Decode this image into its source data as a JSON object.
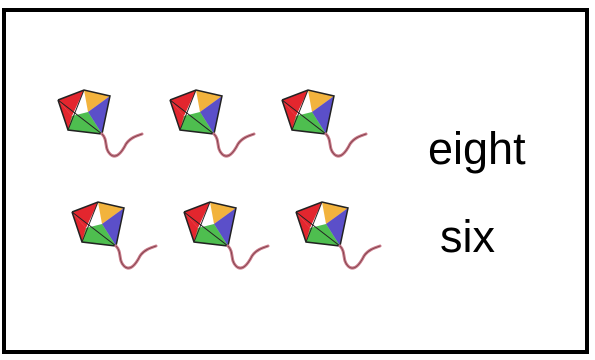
{
  "rows": [
    {
      "kite_count": 3,
      "word": "eight"
    },
    {
      "kite_count": 3,
      "word": "six"
    }
  ],
  "kite": {
    "icon": "kite-icon",
    "colors": {
      "top": "#f2b33d",
      "left": "#e3262e",
      "right": "#5b4fc9",
      "bottom": "#4ebe4f",
      "tail": "#c97b8a",
      "frame": "#222222"
    }
  }
}
